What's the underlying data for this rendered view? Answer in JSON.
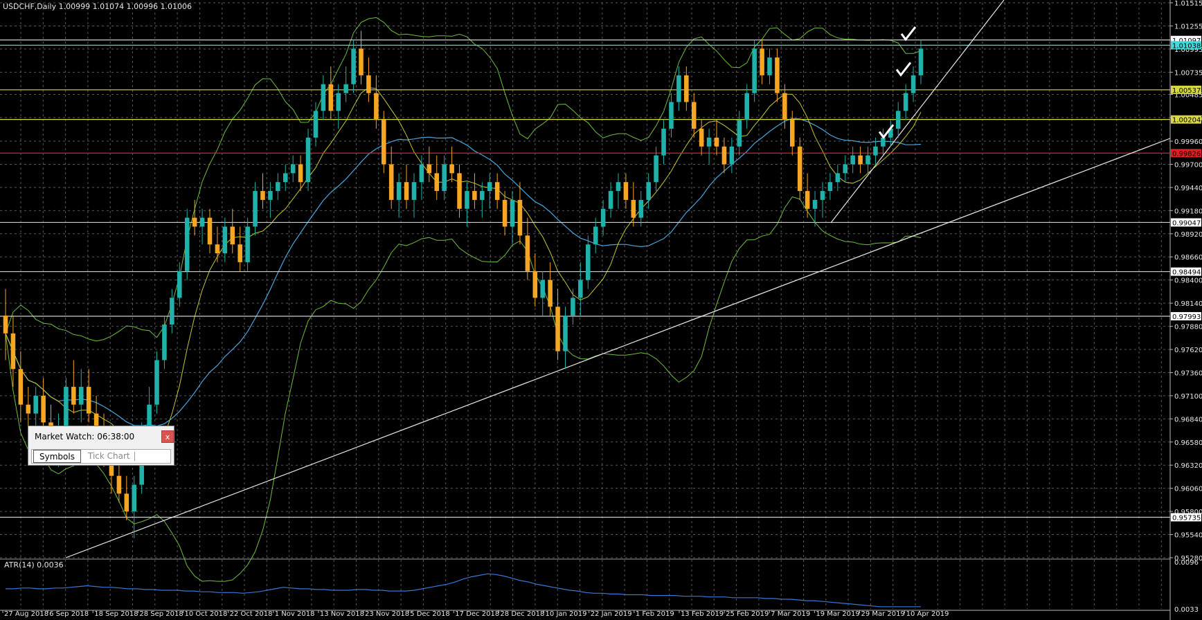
{
  "window": {
    "header": "USDCHF,Daily  1.00999 1.01074 1.00996 1.01006",
    "atr_label": "ATR(14) 0.0036"
  },
  "market_watch": {
    "title": "Market Watch: 06:38:00",
    "close_label": "x",
    "tabs": [
      "Symbols",
      "Tick Chart"
    ]
  },
  "colors": {
    "background": "#000000",
    "grid": "#5a5a5a",
    "bull_candle": "#20b2aa",
    "bear_candle": "#f5a623",
    "bollinger": "#6fbf3f",
    "ma_fast": "#c8c832",
    "ma_slow": "#4aa8e0",
    "level_white": "#d0d0d0",
    "level_red": "#e02020",
    "level_yellow": "#d8d840",
    "level_cyan": "#40d8d8",
    "trendline": "#e8e8e8",
    "atr_line": "#3a78d8",
    "axis_text": "#e8e8e8"
  },
  "chart_data": {
    "type": "candlestick",
    "symbol": "USDCHF",
    "timeframe": "Daily",
    "ylim": [
      0.9528,
      1.01515
    ],
    "y_ticks": [
      "1.01515",
      "1.01255",
      "1.00995",
      "1.00735",
      "1.00485",
      "1.00225",
      "0.99960",
      "0.99700",
      "0.99440",
      "0.99180",
      "0.98920",
      "0.98660",
      "0.98400",
      "0.98140",
      "0.97880",
      "0.97620",
      "0.97360",
      "0.97100",
      "0.96840",
      "0.96580",
      "0.96320",
      "0.96060",
      "0.95800",
      "0.95540",
      "0.95280"
    ],
    "x_ticks": [
      "27 Aug 2018",
      "6 Sep 2018",
      "18 Sep 2018",
      "28 Sep 2018",
      "10 Oct 2018",
      "22 Oct 2018",
      "1 Nov 2018",
      "13 Nov 2018",
      "23 Nov 2018",
      "5 Dec 2018",
      "17 Dec 2018",
      "28 Dec 2018",
      "10 Jan 2019",
      "22 Jan 2019",
      "1 Feb 2019",
      "13 Feb 2019",
      "25 Feb 2019",
      "7 Mar 2019",
      "19 Mar 2019",
      "29 Mar 2019",
      "10 Apr 2019"
    ],
    "price_levels": [
      {
        "price": 1.01097,
        "label": "1.01097",
        "color": "white"
      },
      {
        "price": 1.01038,
        "label": "1.01038",
        "color": "cyan"
      },
      {
        "price": 1.00537,
        "label": "1.00537",
        "color": "yellow"
      },
      {
        "price": 1.00204,
        "label": "1.00204",
        "color": "yellow"
      },
      {
        "price": 0.99826,
        "label": "0.99826",
        "color": "red"
      },
      {
        "price": 0.99047,
        "label": "0.99047",
        "color": "white"
      },
      {
        "price": 0.98494,
        "label": "0.98494",
        "color": "white"
      },
      {
        "price": 0.97993,
        "label": "0.97993",
        "color": "white"
      },
      {
        "price": 0.95735,
        "label": "0.95735",
        "color": "white"
      }
    ],
    "candles": [
      [
        0.98,
        0.983,
        0.975,
        0.978
      ],
      [
        0.978,
        0.98,
        0.972,
        0.974
      ],
      [
        0.974,
        0.976,
        0.968,
        0.97
      ],
      [
        0.97,
        0.972,
        0.966,
        0.969
      ],
      [
        0.969,
        0.972,
        0.966,
        0.971
      ],
      [
        0.971,
        0.973,
        0.967,
        0.968
      ],
      [
        0.968,
        0.97,
        0.965,
        0.966
      ],
      [
        0.966,
        0.969,
        0.963,
        0.967
      ],
      [
        0.967,
        0.973,
        0.966,
        0.972
      ],
      [
        0.972,
        0.975,
        0.969,
        0.97
      ],
      [
        0.97,
        0.974,
        0.968,
        0.972
      ],
      [
        0.972,
        0.974,
        0.968,
        0.969
      ],
      [
        0.969,
        0.971,
        0.966,
        0.967
      ],
      [
        0.967,
        0.969,
        0.963,
        0.964
      ],
      [
        0.964,
        0.966,
        0.96,
        0.962
      ],
      [
        0.962,
        0.964,
        0.959,
        0.96
      ],
      [
        0.96,
        0.962,
        0.957,
        0.958
      ],
      [
        0.958,
        0.962,
        0.955,
        0.961
      ],
      [
        0.961,
        0.968,
        0.96,
        0.967
      ],
      [
        0.967,
        0.972,
        0.966,
        0.97
      ],
      [
        0.97,
        0.976,
        0.969,
        0.975
      ],
      [
        0.975,
        0.98,
        0.974,
        0.979
      ],
      [
        0.979,
        0.983,
        0.978,
        0.982
      ],
      [
        0.982,
        0.986,
        0.981,
        0.985
      ],
      [
        0.985,
        0.992,
        0.984,
        0.991
      ],
      [
        0.991,
        0.993,
        0.989,
        0.99
      ],
      [
        0.99,
        0.992,
        0.988,
        0.991
      ],
      [
        0.991,
        0.992,
        0.987,
        0.988
      ],
      [
        0.988,
        0.99,
        0.986,
        0.987
      ],
      [
        0.987,
        0.991,
        0.986,
        0.99
      ],
      [
        0.99,
        0.992,
        0.987,
        0.988
      ],
      [
        0.988,
        0.99,
        0.985,
        0.986
      ],
      [
        0.986,
        0.991,
        0.985,
        0.99
      ],
      [
        0.99,
        0.995,
        0.989,
        0.994
      ],
      [
        0.994,
        0.996,
        0.992,
        0.993
      ],
      [
        0.993,
        0.995,
        0.991,
        0.994
      ],
      [
        0.994,
        0.996,
        0.993,
        0.995
      ],
      [
        0.995,
        0.997,
        0.994,
        0.996
      ],
      [
        0.996,
        0.998,
        0.995,
        0.997
      ],
      [
        0.997,
        0.998,
        0.994,
        0.995
      ],
      [
        0.995,
        1.001,
        0.994,
        1.0
      ],
      [
        1.0,
        1.004,
        0.999,
        1.003
      ],
      [
        1.003,
        1.007,
        1.002,
        1.006
      ],
      [
        1.006,
        1.008,
        1.002,
        1.003
      ],
      [
        1.003,
        1.006,
        1.001,
        1.005
      ],
      [
        1.005,
        1.008,
        1.004,
        1.006
      ],
      [
        1.006,
        1.011,
        1.005,
        1.01
      ],
      [
        1.01,
        1.012,
        1.006,
        1.007
      ],
      [
        1.007,
        1.009,
        1.004,
        1.005
      ],
      [
        1.005,
        1.007,
        1.001,
        1.002
      ],
      [
        1.002,
        1.003,
        0.996,
        0.997
      ],
      [
        0.997,
        0.999,
        0.992,
        0.993
      ],
      [
        0.993,
        0.996,
        0.991,
        0.995
      ],
      [
        0.995,
        0.997,
        0.992,
        0.993
      ],
      [
        0.993,
        0.996,
        0.991,
        0.995
      ],
      [
        0.995,
        0.998,
        0.993,
        0.997
      ],
      [
        0.997,
        0.999,
        0.995,
        0.996
      ],
      [
        0.996,
        0.998,
        0.993,
        0.994
      ],
      [
        0.994,
        0.998,
        0.993,
        0.997
      ],
      [
        0.997,
        0.999,
        0.995,
        0.996
      ],
      [
        0.996,
        0.997,
        0.991,
        0.992
      ],
      [
        0.992,
        0.995,
        0.99,
        0.994
      ],
      [
        0.994,
        0.996,
        0.992,
        0.993
      ],
      [
        0.993,
        0.995,
        0.991,
        0.994
      ],
      [
        0.994,
        0.996,
        0.992,
        0.995
      ],
      [
        0.995,
        0.996,
        0.992,
        0.993
      ],
      [
        0.993,
        0.994,
        0.989,
        0.99
      ],
      [
        0.99,
        0.994,
        0.988,
        0.993
      ],
      [
        0.993,
        0.995,
        0.988,
        0.989
      ],
      [
        0.989,
        0.991,
        0.984,
        0.985
      ],
      [
        0.985,
        0.987,
        0.981,
        0.982
      ],
      [
        0.982,
        0.985,
        0.98,
        0.984
      ],
      [
        0.984,
        0.986,
        0.98,
        0.981
      ],
      [
        0.981,
        0.983,
        0.975,
        0.976
      ],
      [
        0.976,
        0.981,
        0.974,
        0.98
      ],
      [
        0.98,
        0.983,
        0.979,
        0.982
      ],
      [
        0.982,
        0.986,
        0.98,
        0.984
      ],
      [
        0.984,
        0.989,
        0.983,
        0.988
      ],
      [
        0.988,
        0.991,
        0.987,
        0.99
      ],
      [
        0.99,
        0.993,
        0.989,
        0.992
      ],
      [
        0.992,
        0.995,
        0.991,
        0.994
      ],
      [
        0.994,
        0.996,
        0.992,
        0.995
      ],
      [
        0.995,
        0.996,
        0.992,
        0.993
      ],
      [
        0.993,
        0.995,
        0.99,
        0.991
      ],
      [
        0.991,
        0.994,
        0.99,
        0.993
      ],
      [
        0.993,
        0.996,
        0.992,
        0.995
      ],
      [
        0.995,
        0.999,
        0.994,
        0.998
      ],
      [
        0.998,
        1.002,
        0.997,
        1.001
      ],
      [
        1.001,
        1.005,
        1.0,
        1.004
      ],
      [
        1.004,
        1.008,
        1.003,
        1.007
      ],
      [
        1.007,
        1.008,
        1.003,
        1.004
      ],
      [
        1.004,
        1.005,
        1.0,
        1.001
      ],
      [
        1.001,
        1.002,
        0.998,
        0.999
      ],
      [
        0.999,
        1.001,
        0.997,
        1.0
      ],
      [
        1.0,
        1.002,
        0.998,
        0.999
      ],
      [
        0.999,
        1.0,
        0.996,
        0.997
      ],
      [
        0.997,
        1.0,
        0.996,
        0.999
      ],
      [
        0.999,
        1.003,
        0.998,
        1.002
      ],
      [
        1.002,
        1.006,
        1.001,
        1.005
      ],
      [
        1.005,
        1.011,
        1.004,
        1.01
      ],
      [
        1.01,
        1.011,
        1.006,
        1.007
      ],
      [
        1.007,
        1.01,
        1.006,
        1.009
      ],
      [
        1.009,
        1.01,
        1.004,
        1.005
      ],
      [
        1.005,
        1.006,
        1.001,
        1.002
      ],
      [
        1.002,
        1.003,
        0.998,
        0.999
      ],
      [
        0.999,
        1.0,
        0.993,
        0.994
      ],
      [
        0.994,
        0.996,
        0.991,
        0.992
      ],
      [
        0.992,
        0.994,
        0.99,
        0.993
      ],
      [
        0.993,
        0.995,
        0.991,
        0.994
      ],
      [
        0.994,
        0.996,
        0.993,
        0.995
      ],
      [
        0.995,
        0.997,
        0.994,
        0.996
      ],
      [
        0.996,
        0.998,
        0.995,
        0.997
      ],
      [
        0.997,
        0.999,
        0.996,
        0.998
      ],
      [
        0.998,
        0.999,
        0.996,
        0.997
      ],
      [
        0.997,
        0.999,
        0.996,
        0.998
      ],
      [
        0.998,
        1.0,
        0.997,
        0.999
      ],
      [
        0.999,
        1.001,
        0.998,
        1.0
      ],
      [
        1.0,
        1.002,
        0.999,
        1.001
      ],
      [
        1.001,
        1.004,
        1.0,
        1.003
      ],
      [
        1.003,
        1.006,
        1.002,
        1.005
      ],
      [
        1.005,
        1.008,
        1.004,
        1.007
      ],
      [
        1.007,
        1.011,
        1.006,
        1.01
      ]
    ],
    "atr": {
      "label": "ATR(14) 0.0036",
      "ylim": [
        0.0033,
        0.0096
      ],
      "y_ticks": [
        "0.0096",
        "0.0033"
      ],
      "values": [
        0.006,
        0.006,
        0.0061,
        0.0061,
        0.006,
        0.006,
        0.0061,
        0.0061,
        0.0062,
        0.0063,
        0.0064,
        0.0063,
        0.0062,
        0.0062,
        0.0061,
        0.006,
        0.006,
        0.0059,
        0.0059,
        0.0058,
        0.0058,
        0.0058,
        0.0057,
        0.0057,
        0.0056,
        0.0056,
        0.0055,
        0.0055,
        0.0055,
        0.0054,
        0.0055,
        0.0056,
        0.0058,
        0.006,
        0.0062,
        0.0061,
        0.006,
        0.006,
        0.0059,
        0.0059,
        0.0058,
        0.0058,
        0.0058,
        0.0059,
        0.0059,
        0.0058,
        0.0058,
        0.0057,
        0.0057,
        0.0057,
        0.0058,
        0.006,
        0.0062,
        0.0064,
        0.0066,
        0.0069,
        0.0073,
        0.0076,
        0.0078,
        0.008,
        0.0079,
        0.0077,
        0.0074,
        0.0071,
        0.0069,
        0.0066,
        0.0064,
        0.0062,
        0.006,
        0.0058,
        0.0057,
        0.0055,
        0.0054,
        0.0054,
        0.0053,
        0.0053,
        0.0052,
        0.0052,
        0.0052,
        0.0051,
        0.0051,
        0.0051,
        0.0051,
        0.005,
        0.005,
        0.005,
        0.0049,
        0.0049,
        0.0049,
        0.0048,
        0.0048,
        0.0048,
        0.0048,
        0.0047,
        0.0047,
        0.0046,
        0.0046,
        0.0045,
        0.0044,
        0.0044,
        0.0043,
        0.0042,
        0.0041,
        0.004,
        0.0039,
        0.0038,
        0.0037,
        0.0036,
        0.0036,
        0.0036,
        0.0036,
        0.0036,
        0.0036
      ]
    }
  }
}
